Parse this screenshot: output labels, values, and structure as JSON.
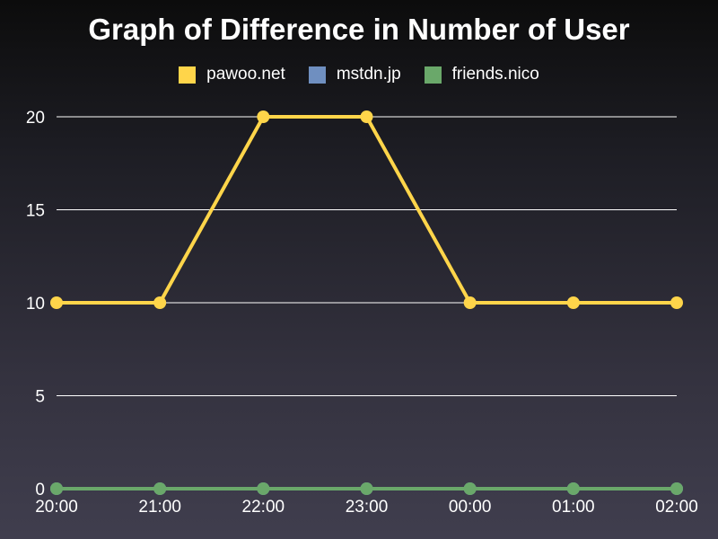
{
  "chart_data": {
    "type": "line",
    "title": "Graph of Difference in Number of User",
    "categories": [
      "20:00",
      "21:00",
      "22:00",
      "23:00",
      "00:00",
      "01:00",
      "02:00"
    ],
    "yticks": [
      "0",
      "5",
      "10",
      "15",
      "20"
    ],
    "ylim": [
      0,
      20
    ],
    "grid": true,
    "legend_position": "top",
    "series": [
      {
        "name": "pawoo.net",
        "color": "#ffd54a",
        "values": [
          10,
          10,
          20,
          20,
          10,
          10,
          10
        ]
      },
      {
        "name": "mstdn.jp",
        "color": "#6f8fc0",
        "values": [
          0,
          0,
          0,
          0,
          0,
          0,
          0
        ]
      },
      {
        "name": "friends.nico",
        "color": "#6aa86a",
        "values": [
          0,
          0,
          0,
          0,
          0,
          0,
          0
        ]
      }
    ]
  }
}
